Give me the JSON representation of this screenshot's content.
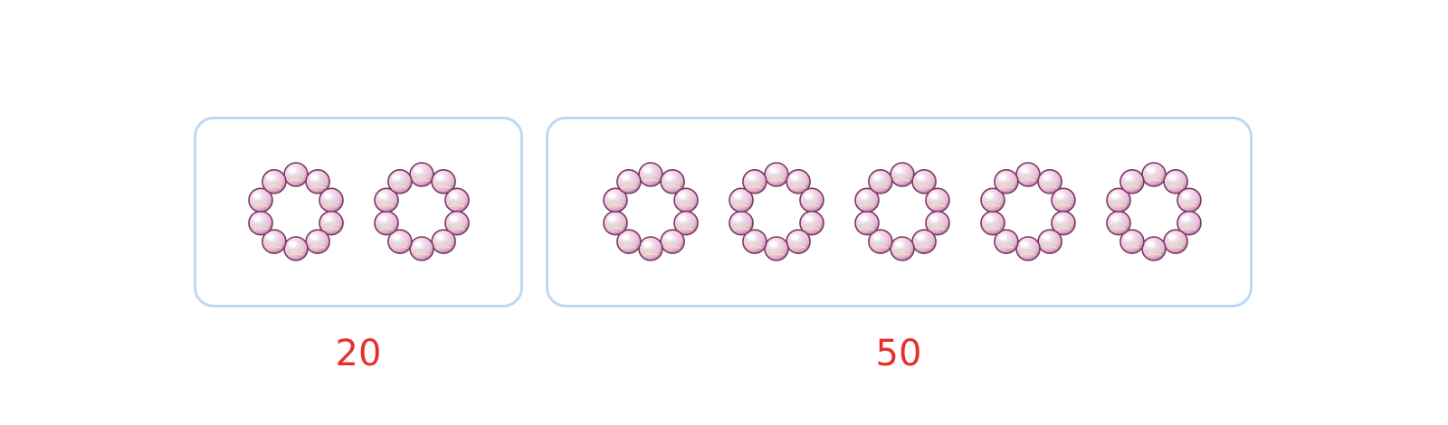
{
  "colors": {
    "box_border": "#bcd8f5",
    "label": "#e8302b",
    "bead_base": "#e7bcd9",
    "bead_outline": "#7a3a5e"
  },
  "icons": {
    "bead": "pearl-bead-icon",
    "ring": "bead-ring-icon"
  },
  "groups": [
    {
      "label": "20",
      "rings": 2,
      "beads_per_ring": 10
    },
    {
      "label": "50",
      "rings": 5,
      "beads_per_ring": 10
    }
  ]
}
